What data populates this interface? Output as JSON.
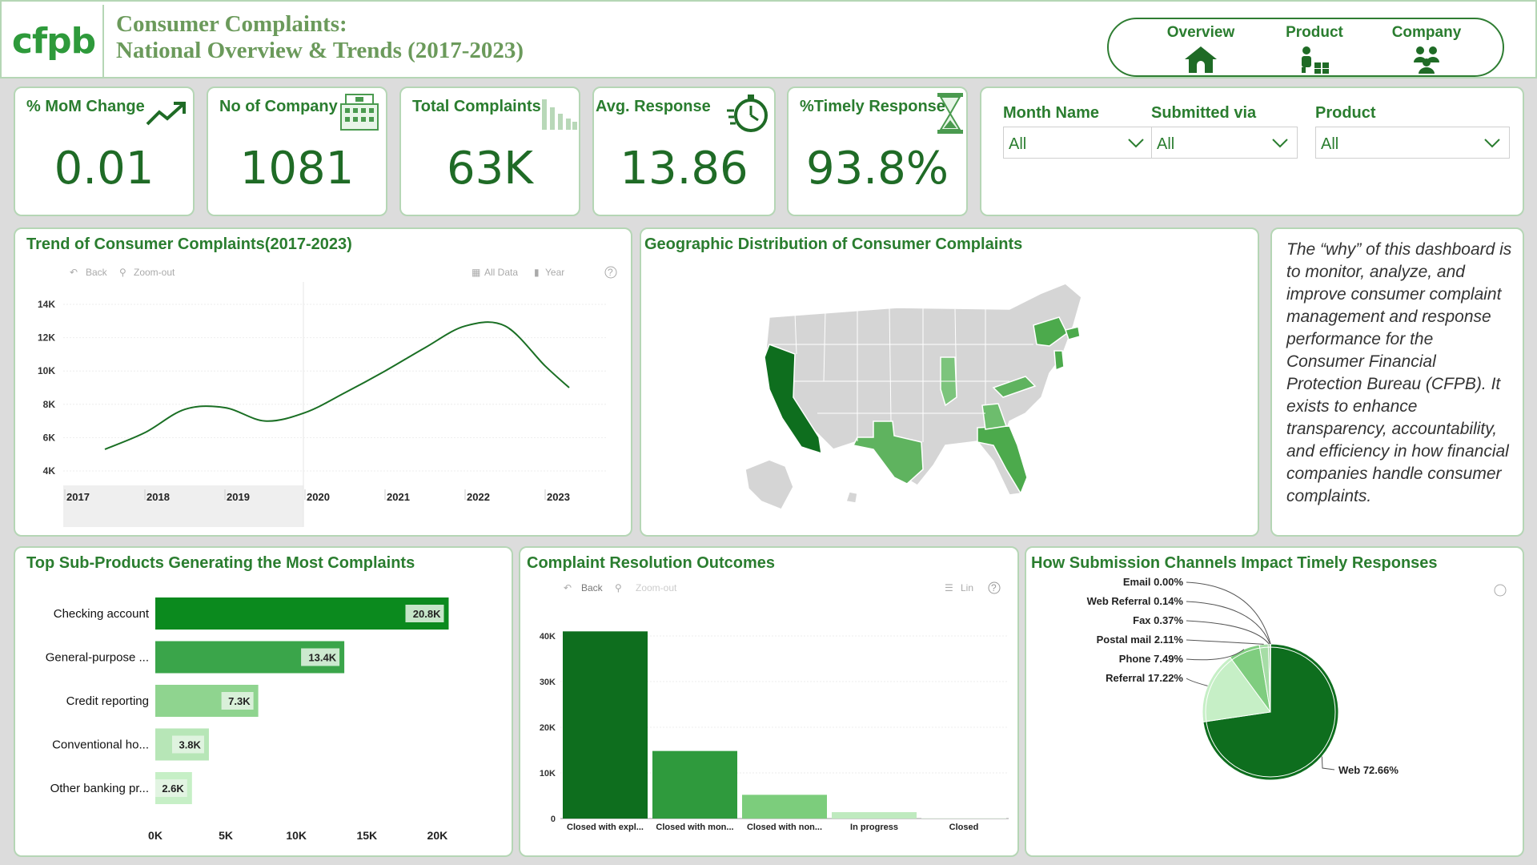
{
  "header": {
    "logo": "cfpb",
    "title_line1": "Consumer Complaints:",
    "title_line2": "National Overview & Trends (2017-2023)",
    "nav": [
      {
        "label": "Overview",
        "icon": "home-icon"
      },
      {
        "label": "Product",
        "icon": "product-icon"
      },
      {
        "label": "Company",
        "icon": "people-icon"
      }
    ]
  },
  "kpis": [
    {
      "label": "% MoM Change",
      "value": "0.01",
      "icon": "trend-up-icon"
    },
    {
      "label": "No of Company",
      "value": "1081",
      "icon": "building-icon"
    },
    {
      "label": "Total Complaints",
      "value": "63K",
      "icon": "bar-chart-icon"
    },
    {
      "label": "Avg. Response",
      "value": "13.86",
      "icon": "stopwatch-icon"
    },
    {
      "label": "%Timely Response",
      "value": "93.8%",
      "icon": "hourglass-icon"
    }
  ],
  "filters": [
    {
      "label": "Month Name",
      "value": "All"
    },
    {
      "label": "Submitted via",
      "value": "All"
    },
    {
      "label": "Product",
      "value": "All"
    }
  ],
  "trend_panel": {
    "title": "Trend of Consumer Complaints(2017-2023)",
    "toolbar": {
      "back": "Back",
      "zoom_out": "Zoom-out",
      "all_data": "All Data",
      "year": "Year",
      "help": "?"
    }
  },
  "map_panel": {
    "title": "Geographic Distribution of Consumer Complaints"
  },
  "description": "The “why” of this dashboard is to monitor, analyze, and improve consumer complaint management and response performance for the Consumer Financial Protection Bureau (CFPB). It exists to enhance transparency, accountability, and efficiency in how financial companies handle consumer complaints.",
  "subproducts_panel": {
    "title": "Top Sub-Products Generating the Most Complaints"
  },
  "resolution_panel": {
    "title": "Complaint Resolution Outcomes",
    "toolbar": {
      "back": "Back",
      "zoom_out": "Zoom-out",
      "lin": "Lin",
      "help": "?"
    }
  },
  "channels_panel": {
    "title": "How Submission Channels Impact Timely Responses",
    "help": "?"
  },
  "colors": {
    "dark_green": "#0e6e1e",
    "mid_green": "#3aa54a",
    "light_green": "#8fd48f",
    "pale_green": "#c6efc6",
    "accent": "#2a7d2f"
  },
  "chart_data": [
    {
      "type": "line",
      "title": "Trend of Consumer Complaints(2017-2023)",
      "x": [
        2017.5,
        2018.0,
        2018.5,
        2019.0,
        2019.5,
        2020.0,
        2020.5,
        2021.0,
        2021.5,
        2022.0,
        2022.5,
        2023.0,
        2023.3
      ],
      "series": [
        {
          "values": [
            5300,
            6300,
            7700,
            7800,
            7000,
            7500,
            8700,
            10000,
            11400,
            12700,
            12700,
            10300,
            9000
          ]
        }
      ],
      "xticks": [
        "2017",
        "2018",
        "2019",
        "2020",
        "2021",
        "2022",
        "2023"
      ],
      "yticks": [
        "4K",
        "6K",
        "8K",
        "10K",
        "12K",
        "14K"
      ],
      "xlim": [
        2017,
        2024
      ],
      "ylim": [
        4000,
        14000
      ]
    },
    {
      "type": "bar",
      "orientation": "horizontal",
      "title": "Top Sub-Products Generating the Most Complaints",
      "categories": [
        "Checking account",
        "General-purpose ...",
        "Credit reporting",
        "Conventional ho...",
        "Other banking pr..."
      ],
      "values": [
        20800,
        13400,
        7300,
        3800,
        2600
      ],
      "data_labels": [
        "20.8K",
        "13.4K",
        "7.3K",
        "3.8K",
        "2.6K"
      ],
      "xticks": [
        "0K",
        "5K",
        "10K",
        "15K",
        "20K"
      ],
      "xlim": [
        0,
        21000
      ]
    },
    {
      "type": "bar",
      "title": "Complaint Resolution Outcomes",
      "categories": [
        "Closed with expl...",
        "Closed with mon...",
        "Closed with non...",
        "In progress",
        "Closed"
      ],
      "values": [
        41000,
        14800,
        5200,
        1400,
        100
      ],
      "yticks": [
        "0",
        "10K",
        "20K",
        "30K",
        "40K"
      ],
      "ylim": [
        0,
        40000
      ]
    },
    {
      "type": "pie",
      "title": "How Submission Channels Impact Timely Responses",
      "labels": [
        "Web",
        "Referral",
        "Phone",
        "Postal mail",
        "Fax",
        "Web Referral",
        "Email"
      ],
      "values": [
        72.66,
        17.22,
        7.49,
        2.11,
        0.37,
        0.14,
        0.0
      ],
      "display_labels": [
        "Web 72.66%",
        "Referral 17.22%",
        "Phone 7.49%",
        "Postal mail 2.11%",
        "Fax 0.37%",
        "Web Referral 0.14%",
        "Email 0.00%"
      ]
    }
  ]
}
